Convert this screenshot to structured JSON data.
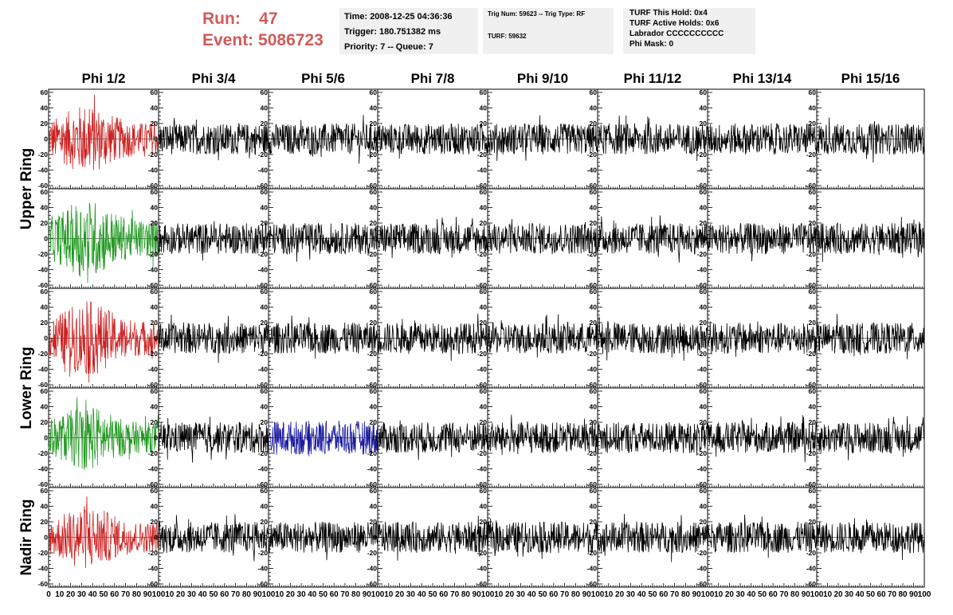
{
  "header": {
    "run_label": "Run:",
    "run_value": "47",
    "event_label": "Event:",
    "event_value": "5086723"
  },
  "info_boxes": {
    "time_line": "Time: 2008-12-25 04:36:36",
    "trigger_line": "Trigger: 180.751382 ms",
    "priority_line": "Priority: 7 -- Queue: 7",
    "trig_num_line": "Trig Num: 59623 -- Trig Type: RF",
    "turf_line": "TURF: 59632",
    "turf_hold_line": "TURF This Hold: 0x4",
    "turf_active_line": "TURF Active Holds: 0x6",
    "labrador_line": "Labrador CCCCCCCCCC",
    "phi_mask_line": "Phi Mask: 0"
  },
  "chart_data": {
    "type": "line",
    "columns": [
      "Phi 1/2",
      "Phi 3/4",
      "Phi 5/6",
      "Phi 7/8",
      "Phi 9/10",
      "Phi 11/12",
      "Phi 13/14",
      "Phi 15/16"
    ],
    "ring_labels": [
      {
        "label": "Upper Ring",
        "rows": [
          0,
          1
        ]
      },
      {
        "label": "Lower Ring",
        "rows": [
          2,
          3
        ]
      },
      {
        "label": "Nadir Ring",
        "rows": [
          4,
          4
        ]
      }
    ],
    "xlim": [
      0,
      100
    ],
    "ylim": [
      -60,
      60
    ],
    "x_tick_labels": [
      "0",
      "10",
      "20",
      "30",
      "40",
      "50",
      "60",
      "70",
      "80",
      "90",
      "100"
    ],
    "y_tick_labels": [
      "60",
      "40",
      "20",
      "0",
      "-20",
      "-40",
      "-60"
    ],
    "y_tick_values": [
      60,
      40,
      20,
      0,
      -20,
      -40,
      -60
    ],
    "samples_per_trace": 260,
    "trace_extent": [
      0,
      100
    ],
    "colors": {
      "default": "#000000",
      "red": "#cc2222",
      "green": "#229922",
      "blue": "#1a1a9e",
      "header": "#d25a5a"
    },
    "highlighted_traces": [
      {
        "row": 0,
        "col": 0,
        "color": "red",
        "amplitude": 30
      },
      {
        "row": 1,
        "col": 0,
        "color": "green",
        "amplitude": 34
      },
      {
        "row": 2,
        "col": 0,
        "color": "red",
        "amplitude": 32
      },
      {
        "row": 3,
        "col": 0,
        "color": "green",
        "amplitude": 28
      },
      {
        "row": 4,
        "col": 0,
        "color": "red",
        "amplitude": 28
      },
      {
        "row": 3,
        "col": 2,
        "color": "blue",
        "amplitude": 22
      }
    ],
    "typical_amplitude": 20
  }
}
